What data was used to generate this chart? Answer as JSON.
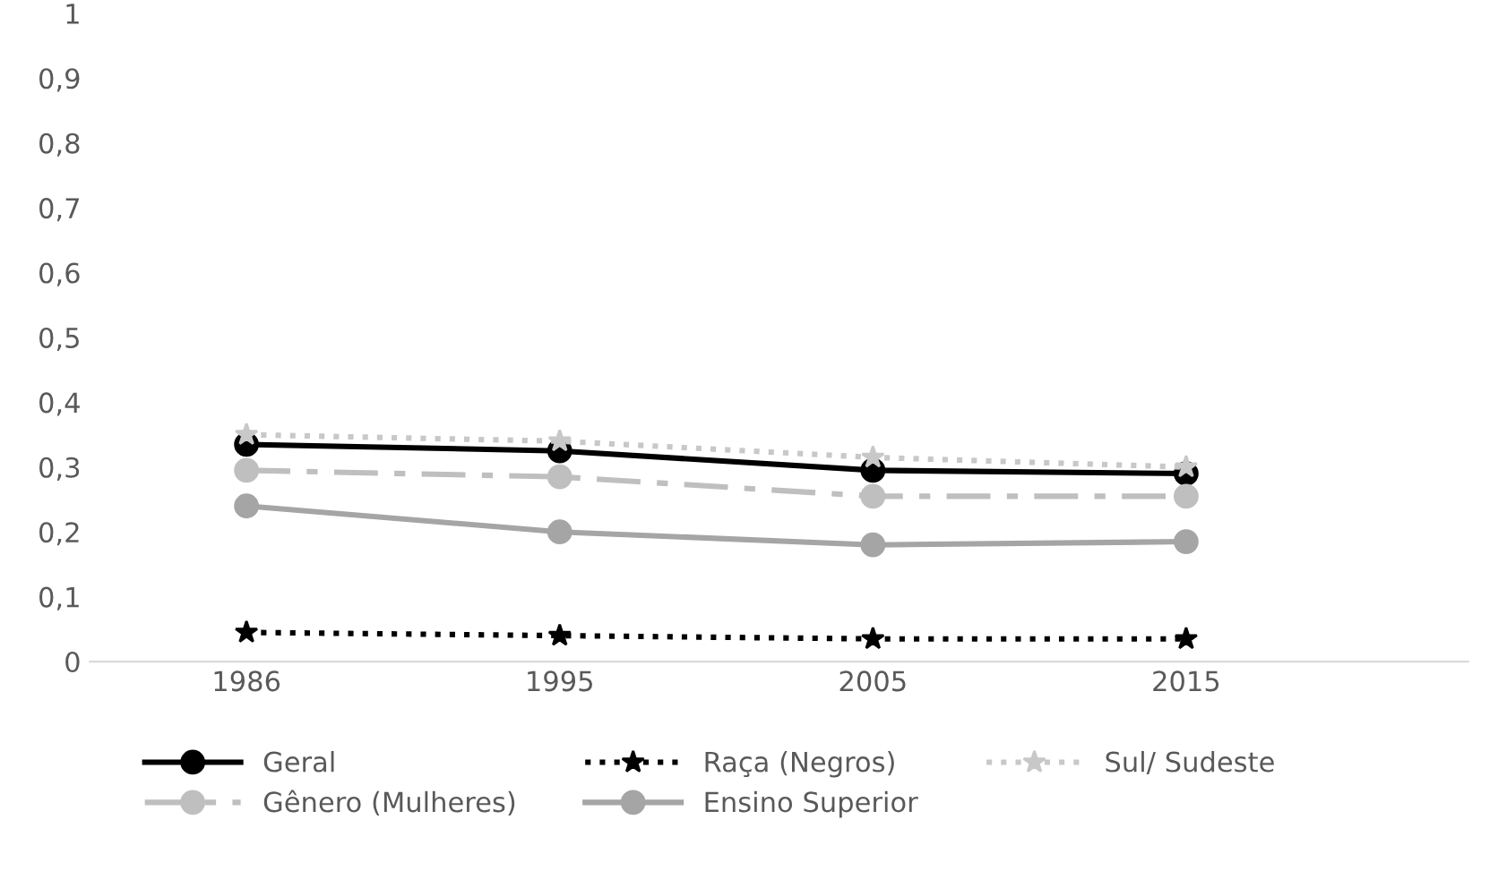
{
  "chart_data": {
    "type": "line",
    "categories": [
      "1986",
      "1995",
      "2005",
      "2015"
    ],
    "series": [
      {
        "name": "Geral",
        "color": "#000000",
        "values": [
          0.335,
          0.325,
          0.295,
          0.29
        ],
        "marker": "circle",
        "line_style": "solid"
      },
      {
        "name": "Gênero (Mulheres)",
        "color": "#bfbfbf",
        "values": [
          0.295,
          0.285,
          0.255,
          0.255
        ],
        "marker": "circle",
        "line_style": "dashed"
      },
      {
        "name": "Raça (Negros)",
        "color": "#000000",
        "values": [
          0.045,
          0.04,
          0.035,
          0.035
        ],
        "marker": "star",
        "line_style": "dotted"
      },
      {
        "name": "Ensino Superior",
        "color": "#a5a5a5",
        "values": [
          0.24,
          0.2,
          0.18,
          0.185
        ],
        "marker": "circle",
        "line_style": "solid"
      },
      {
        "name": "Sul/ Sudeste",
        "color": "#c8c8c8",
        "values": [
          0.35,
          0.34,
          0.315,
          0.3
        ],
        "marker": "star",
        "line_style": "dotted"
      }
    ],
    "ylim": [
      0,
      1
    ],
    "yticks": [
      {
        "value": 0,
        "label": "0"
      },
      {
        "value": 0.1,
        "label": "0,1"
      },
      {
        "value": 0.2,
        "label": "0,2"
      },
      {
        "value": 0.3,
        "label": "0,3"
      },
      {
        "value": 0.4,
        "label": "0,4"
      },
      {
        "value": 0.5,
        "label": "0,5"
      },
      {
        "value": 0.6,
        "label": "0,6"
      },
      {
        "value": 0.7,
        "label": "0,7"
      },
      {
        "value": 0.8,
        "label": "0,8"
      },
      {
        "value": 0.9,
        "label": "0,9"
      },
      {
        "value": 1,
        "label": "1"
      }
    ],
    "grid": false,
    "legend": "bottom"
  }
}
